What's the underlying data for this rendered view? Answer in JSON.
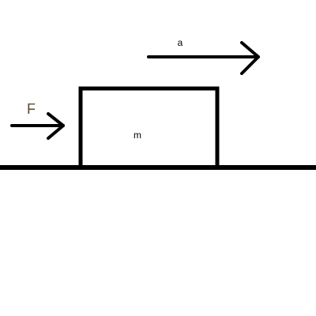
{
  "diagram": {
    "force_label": "F",
    "acceleration_label": "a",
    "mass_label": "m"
  },
  "colors": {
    "background": "#ffffff",
    "stroke": "#000000",
    "force_label": "#5a4a2a"
  }
}
